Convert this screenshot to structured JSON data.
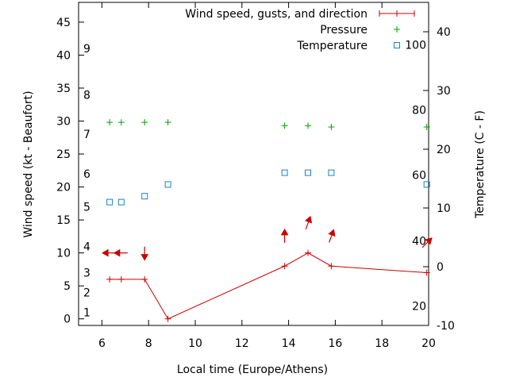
{
  "chart_data": {
    "type": "line",
    "xlabel": "Local time (Europe/Athens)",
    "ylabel": "Wind speed (kt - Beaufort)",
    "y2label": "Temperature (C - F)",
    "xlim": [
      5,
      20
    ],
    "ylim": [
      -1,
      48
    ],
    "y2lim": [
      -10,
      45
    ],
    "x_ticks": [
      6,
      8,
      10,
      12,
      14,
      16,
      18,
      20
    ],
    "y_ticks": [
      0,
      5,
      10,
      15,
      20,
      25,
      30,
      35,
      40,
      45
    ],
    "y2_ticks": [
      -10,
      0,
      10,
      20,
      30,
      40
    ],
    "beaufort_labels": [
      {
        "label": "1",
        "kt": 1
      },
      {
        "label": "2",
        "kt": 4
      },
      {
        "label": "3",
        "kt": 7
      },
      {
        "label": "4",
        "kt": 11
      },
      {
        "label": "5",
        "kt": 17
      },
      {
        "label": "6",
        "kt": 22
      },
      {
        "label": "7",
        "kt": 28
      },
      {
        "label": "8",
        "kt": 34
      },
      {
        "label": "9",
        "kt": 41
      }
    ],
    "fahrenheit_labels": [
      {
        "label": "20",
        "celsius": -6.7
      },
      {
        "label": "40",
        "celsius": 4.4
      },
      {
        "label": "60",
        "celsius": 15.6
      },
      {
        "label": "80",
        "celsius": 26.7
      },
      {
        "label": "100",
        "celsius": 37.8
      }
    ],
    "legend": [
      {
        "label": "Wind speed, gusts, and direction",
        "color": "#cc0000",
        "marker": "errorbar"
      },
      {
        "label": "Pressure",
        "color": "#00a000",
        "marker": "plus"
      },
      {
        "label": "Temperature",
        "color": "#1a80d0",
        "marker": "square"
      }
    ],
    "series": [
      {
        "name": "Wind speed, gusts, and direction",
        "color": "#cc0000",
        "x": [
          6.33,
          6.83,
          7.83,
          8.83,
          13.83,
          14.83,
          15.83,
          19.92
        ],
        "values": [
          6,
          6,
          6,
          0,
          8,
          10,
          8,
          7
        ]
      },
      {
        "name": "Pressure",
        "color": "#00a000",
        "x": [
          6.33,
          6.83,
          7.83,
          8.83,
          13.83,
          14.83,
          15.83,
          19.92
        ],
        "values": [
          29.8,
          29.8,
          29.8,
          29.8,
          29.3,
          29.3,
          29.1,
          29.1
        ]
      },
      {
        "name": "Temperature",
        "color": "#1a80d0",
        "axis": "y2",
        "x": [
          6.33,
          6.83,
          7.83,
          8.83,
          13.83,
          14.83,
          15.83,
          19.92
        ],
        "values": [
          11,
          11,
          12,
          14,
          16,
          16,
          16,
          14
        ]
      }
    ],
    "wind_arrows": [
      {
        "x": 6.33,
        "y": 10,
        "heading": 270
      },
      {
        "x": 6.83,
        "y": 10,
        "heading": 270
      },
      {
        "x": 7.83,
        "y": 10,
        "heading": 180
      },
      {
        "x": 13.83,
        "y": 12.5,
        "heading": 0
      },
      {
        "x": 14.83,
        "y": 14.5,
        "heading": 20
      },
      {
        "x": 15.83,
        "y": 12.5,
        "heading": 20
      },
      {
        "x": 19.92,
        "y": 11.5,
        "heading": 45
      }
    ]
  }
}
